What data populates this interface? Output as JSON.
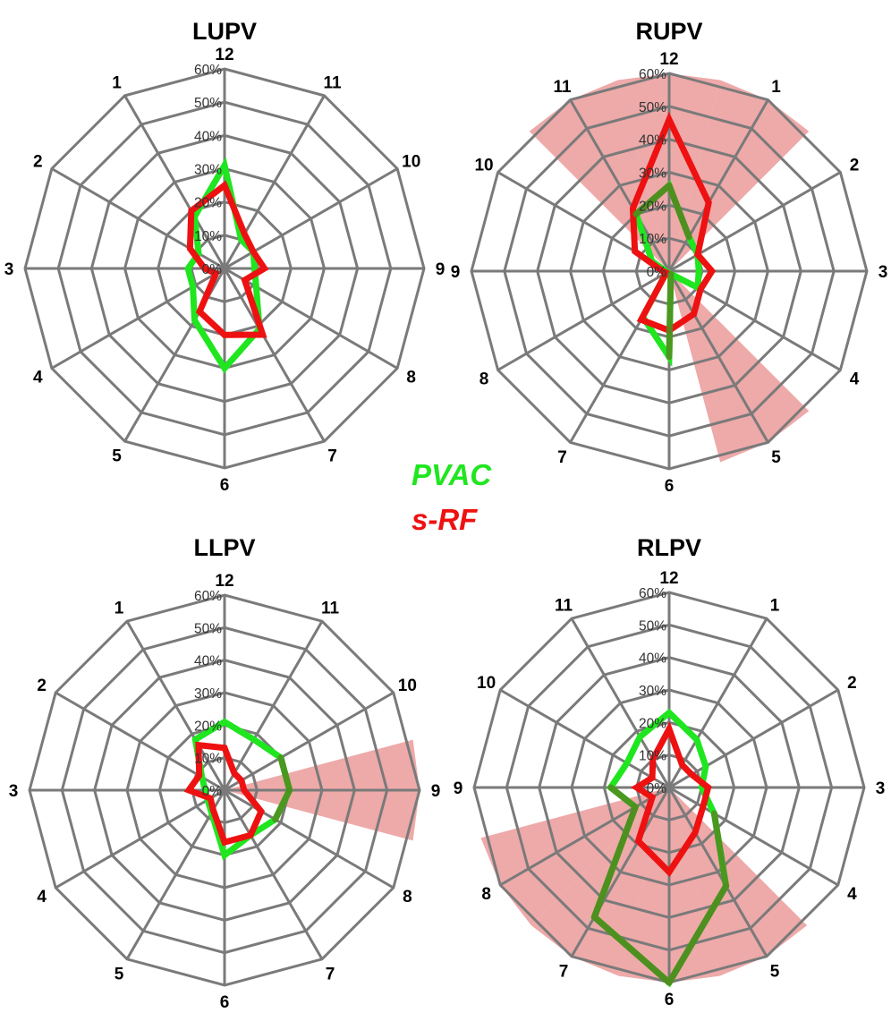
{
  "legend": {
    "entries": [
      {
        "label": "PVAC",
        "color": "#1fe61f"
      },
      {
        "label": "s-RF",
        "color": "#ee1111"
      }
    ]
  },
  "colors": {
    "grid": "#7a7a7a",
    "highlight": "#e47474",
    "overlap": "#4f8f1f"
  },
  "chart_data": [
    {
      "type": "radar",
      "title": "LUPV",
      "categories": [
        "12",
        "11",
        "10",
        "9",
        "8",
        "7",
        "6",
        "5",
        "4",
        "3",
        "2",
        "1"
      ],
      "tick_labels": [
        "0%",
        "10%",
        "20%",
        "30%",
        "40%",
        "50%",
        "60%"
      ],
      "rlim": [
        0,
        60
      ],
      "grid": true,
      "highlight_categories": [],
      "series": [
        {
          "name": "PVAC",
          "values": [
            31,
            10,
            10,
            9,
            11,
            21,
            30,
            18,
            11,
            11,
            9,
            18
          ]
        },
        {
          "name": "s-RF",
          "values": [
            25,
            12,
            10,
            12,
            7,
            23,
            20,
            15,
            3,
            6,
            12,
            20
          ]
        }
      ]
    },
    {
      "type": "radar",
      "title": "RUPV",
      "categories": [
        "12",
        "1",
        "2",
        "3",
        "4",
        "5",
        "6",
        "7",
        "8",
        "9",
        "10",
        "11"
      ],
      "tick_labels": [
        "0%",
        "10%",
        "20%",
        "30%",
        "40%",
        "50%",
        "60%"
      ],
      "rlim": [
        0,
        60
      ],
      "grid": true,
      "highlight_categories": [
        "11",
        "12",
        "1",
        "5"
      ],
      "series": [
        {
          "name": "PVAC",
          "values": [
            26,
            12,
            10,
            9,
            10,
            1,
            26,
            16,
            1,
            1,
            6,
            20
          ]
        },
        {
          "name": "s-RF",
          "values": [
            46,
            24,
            10,
            13,
            11,
            15,
            18,
            17,
            1,
            2,
            12,
            22
          ]
        }
      ]
    },
    {
      "type": "radar",
      "title": "LLPV",
      "categories": [
        "12",
        "11",
        "10",
        "9",
        "8",
        "7",
        "6",
        "5",
        "4",
        "3",
        "2",
        "1"
      ],
      "tick_labels": [
        "0%",
        "10%",
        "20%",
        "30%",
        "40%",
        "50%",
        "60%"
      ],
      "rlim": [
        0,
        60
      ],
      "grid": true,
      "highlight_categories": [
        "9"
      ],
      "series": [
        {
          "name": "PVAC",
          "values": [
            21,
            18,
            20,
            20,
            18,
            16,
            20,
            8,
            6,
            6,
            8,
            18
          ]
        },
        {
          "name": "s-RF",
          "values": [
            13,
            6,
            6,
            6,
            13,
            16,
            16,
            7,
            5,
            11,
            9,
            16
          ]
        }
      ]
    },
    {
      "type": "radar",
      "title": "RLPV",
      "categories": [
        "12",
        "1",
        "2",
        "3",
        "4",
        "5",
        "6",
        "7",
        "8",
        "9",
        "10",
        "11"
      ],
      "tick_labels": [
        "0%",
        "10%",
        "20%",
        "30%",
        "40%",
        "50%",
        "60%"
      ],
      "rlim": [
        0,
        60
      ],
      "grid": true,
      "highlight_categories": [
        "5",
        "6",
        "7",
        "8"
      ],
      "series": [
        {
          "name": "PVAC",
          "values": [
            23,
            17,
            13,
            10,
            16,
            35,
            60,
            46,
            12,
            18,
            15,
            18
          ]
        },
        {
          "name": "s-RF",
          "values": [
            18,
            8,
            8,
            12,
            12,
            16,
            26,
            19,
            6,
            10,
            6,
            10
          ]
        }
      ]
    }
  ]
}
